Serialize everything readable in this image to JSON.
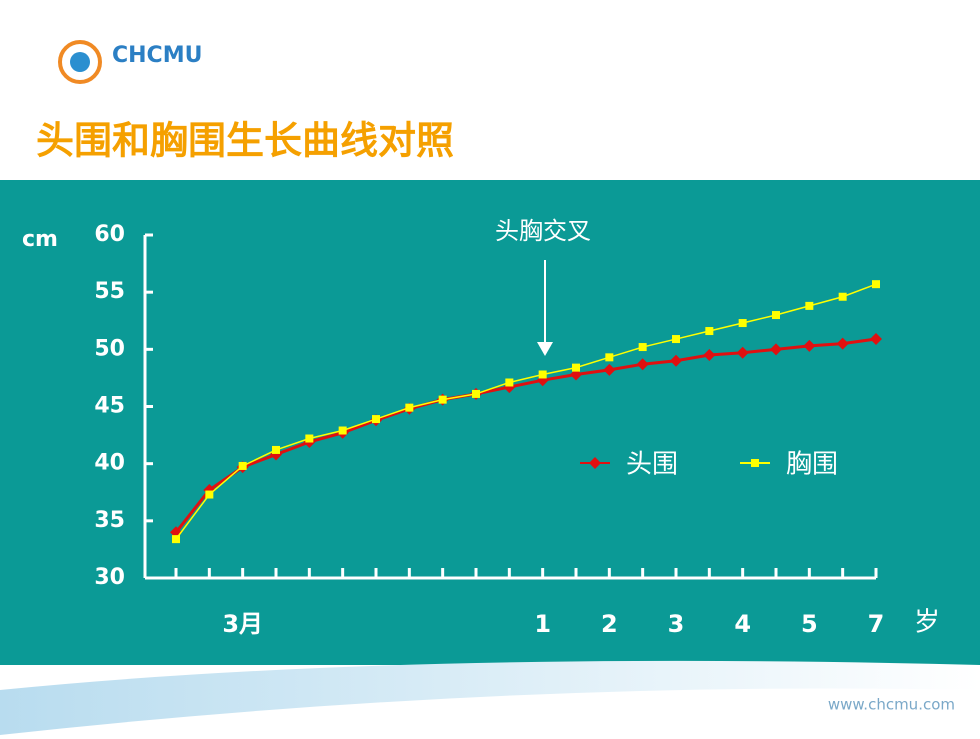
{
  "header": {
    "logo": "CHCMU",
    "title": "头围和胸围生长曲线对照"
  },
  "chart_data": {
    "type": "line",
    "y_label": "cm",
    "x_label": "岁",
    "annotation": "头胸交叉",
    "categories": [
      null,
      null,
      "3月",
      null,
      null,
      null,
      null,
      null,
      null,
      null,
      null,
      "1",
      null,
      "2",
      null,
      "3",
      null,
      "4",
      null,
      "5",
      null,
      "7"
    ],
    "series": [
      {
        "name": "头围",
        "color": "#e01010",
        "marker": "diamond",
        "values": [
          34.0,
          37.7,
          39.7,
          40.8,
          41.9,
          42.7,
          43.8,
          44.8,
          45.6,
          46.1,
          46.7,
          47.3,
          47.8,
          48.2,
          48.7,
          49.0,
          49.5,
          49.7,
          50.0,
          50.3,
          50.5,
          50.9
        ]
      },
      {
        "name": "胸围",
        "color": "#ffff00",
        "marker": "square",
        "values": [
          33.4,
          37.3,
          39.8,
          41.2,
          42.2,
          42.9,
          43.9,
          44.9,
          45.6,
          46.1,
          47.1,
          47.8,
          48.4,
          49.3,
          50.2,
          50.9,
          51.6,
          52.3,
          53.0,
          53.8,
          54.6,
          55.7
        ]
      }
    ],
    "ylim": [
      30,
      60
    ],
    "yticks": [
      30,
      35,
      40,
      45,
      50,
      55,
      60
    ]
  },
  "footer": {
    "url": "www.chcmu.com"
  }
}
